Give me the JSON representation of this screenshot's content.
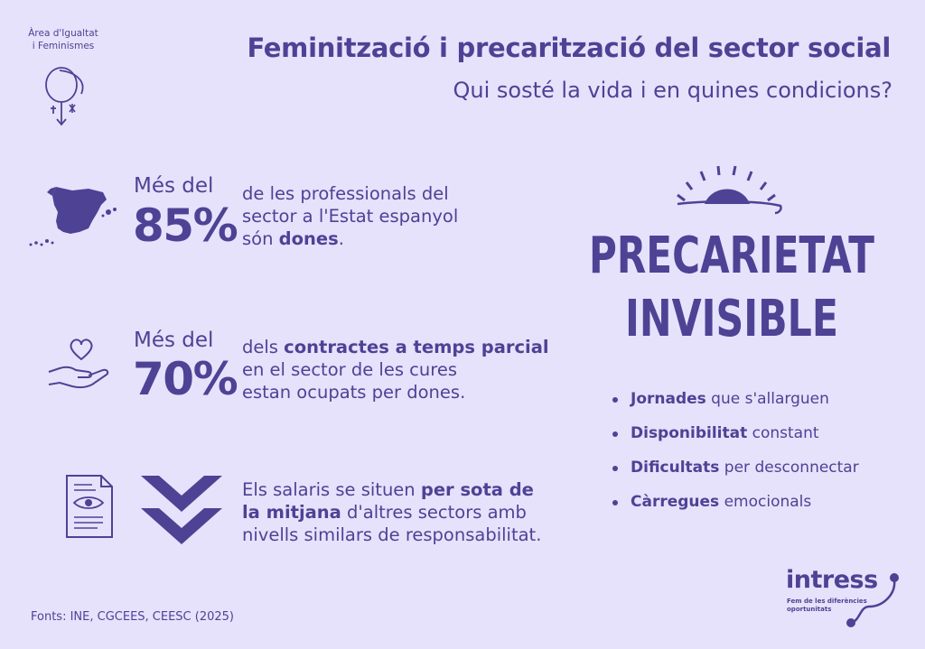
{
  "header": {
    "area_line1": "Àrea d'Igualtat",
    "area_line2": "i Feminismes",
    "title": "Feminització i precarització del sector social",
    "subtitle": "Qui sosté la vida i en quines condicions?"
  },
  "stats": [
    {
      "icon": "spain-map-icon",
      "prefix": "Més del",
      "percent": "85%",
      "text_lines": [
        "de les professionals del",
        "sector a l'Estat espanyol"
      ],
      "last_plain": "són ",
      "last_bold": "dones",
      "last_end": "."
    },
    {
      "icon": "heart-hand-icon",
      "prefix": "Més del",
      "percent": "70%",
      "line1_plain": "dels ",
      "line1_bold": "contractes a temps parcial",
      "line2": "en el sector de les cures",
      "line3": "estan ocupats per dones."
    },
    {
      "icon": "document-eye-icon",
      "icon2": "double-chevron-down-icon",
      "line1_plain": "Els salaris se situen ",
      "line1_bold": "per sota de",
      "line2_bold": "la mitjana",
      "line2_plain": " d'altres sectors amb",
      "line3": "nivells similars de responsabilitat."
    }
  ],
  "graphic": {
    "word1": "PRECARIETAT",
    "word2": "INVISIBLE",
    "icon": "sunrise-icon"
  },
  "bullets": [
    {
      "bold": "Jornades",
      "rest": " que s'allarguen"
    },
    {
      "bold": "Disponibilitat",
      "rest": " constant"
    },
    {
      "bold": "Dificultats",
      "rest": " per desconnectar"
    },
    {
      "bold": "Càrregues",
      "rest": " emocionals"
    }
  ],
  "footer": {
    "sources": "Fonts: INE, CGCEES, CEESC (2025)",
    "logo": "intress",
    "tagline_line1": "Fem de les diferències",
    "tagline_line2": "oportunitats"
  },
  "colors": {
    "background": "#e6e2fb",
    "accent": "#4e4295"
  }
}
